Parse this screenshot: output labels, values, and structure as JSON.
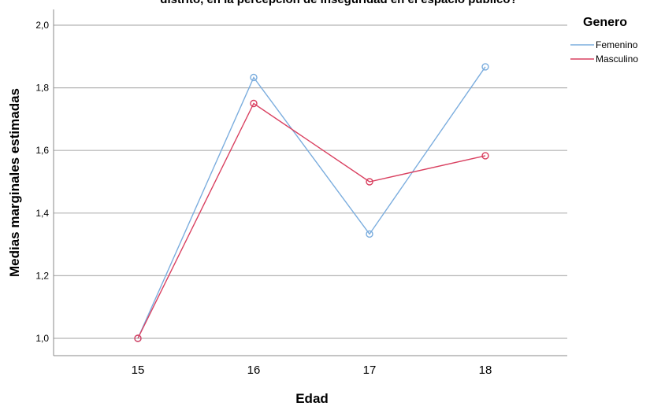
{
  "chart_data": {
    "type": "line",
    "title": "distrito, en la percepción de inseguridad en el espacio público?",
    "xlabel": "Edad",
    "ylabel": "Medias marginales estimadas",
    "categories": [
      "15",
      "16",
      "17",
      "18"
    ],
    "ylim": [
      0.95,
      2.05
    ],
    "yticks": [
      1.0,
      1.2,
      1.4,
      1.6,
      1.8,
      2.0
    ],
    "ytick_labels": [
      "1,0",
      "1,2",
      "1,4",
      "1,6",
      "1,8",
      "2,0"
    ],
    "grid": "horizontal",
    "legend_title": "Genero",
    "legend_position": "top-right",
    "series": [
      {
        "name": "Femenino",
        "color": "#7badde",
        "values": [
          1.0,
          1.833,
          1.333,
          1.867
        ]
      },
      {
        "name": "Masculino",
        "color": "#d94060",
        "values": [
          1.0,
          1.75,
          1.5,
          1.583
        ]
      }
    ]
  }
}
